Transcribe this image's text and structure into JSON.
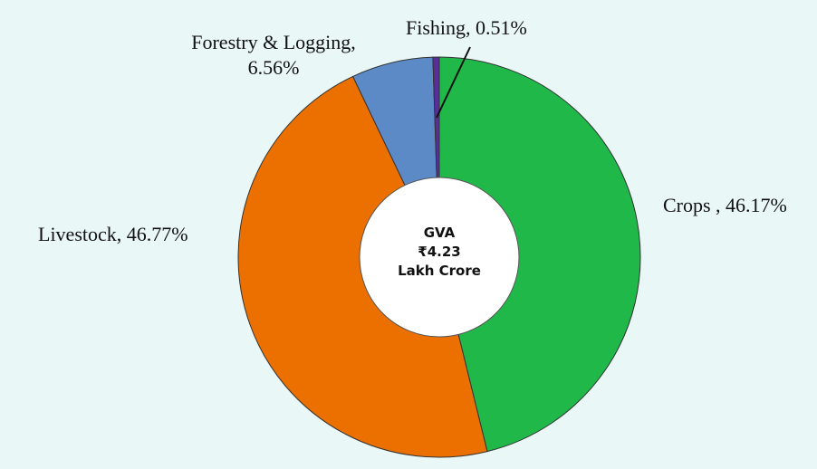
{
  "chart_data": {
    "type": "pie",
    "style": "donut",
    "slices": [
      {
        "name": "Crops",
        "label": "Crops , 46.17%",
        "value": 46.17,
        "color": "#21b84a"
      },
      {
        "name": "Livestock",
        "label": "Livestock, 46.77%",
        "value": 46.77,
        "color": "#ec7000"
      },
      {
        "name": "Forestry & Logging",
        "label_lines": [
          "Forestry & Logging,",
          "6.56%"
        ],
        "value": 6.56,
        "color": "#5b8ac7"
      },
      {
        "name": "Fishing",
        "label": "Fishing, 0.51%",
        "value": 0.51,
        "color": "#5a2d9c"
      }
    ],
    "center_text": [
      "GVA",
      "₹4.23",
      "Lakh Crore"
    ]
  }
}
